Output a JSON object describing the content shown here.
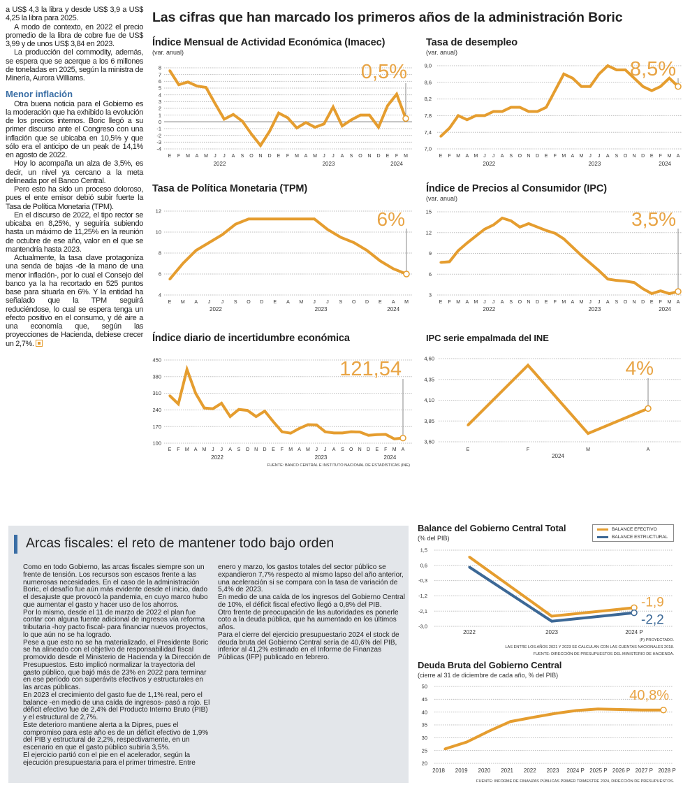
{
  "headline": "Las cifras que han marcado los primeros años de la administración Boric",
  "left_column": {
    "paragraphs_top": [
      "a US$ 4,3 la libra y desde US$ 3,9 a US$ 4,25 la libra para 2025.",
      "A modo de contexto, en 2022 el precio promedio de la libra de cobre fue de US$ 3,99 y de unos US$ 3,84 en 2023.",
      "La producción del commodity, además, se espera que se acerque a los 6 millones de toneladas en 2025, según la ministra de Minería, Aurora Williams."
    ],
    "subheading": "Menor inflación",
    "paragraphs_bottom": [
      "Otra buena noticia para el Gobierno es la moderación que ha exhibido la evolución de los precios internos. Boric llegó a su primer discurso ante el Congreso con una inflación que se ubicaba en 10,5% y que sólo era el anticipo de un peak de 14,1% en agosto de 2022.",
      "Hoy lo acompaña un alza de 3,5%, es decir, un nivel ya cercano a la meta delineada por el Banco Central.",
      "Pero esto ha sido un proceso doloroso, pues el ente emisor debió subir fuerte la Tasa de Política Monetaria (TPM).",
      "En el discurso de 2022, el tipo rector se ubicaba en 8,25%, y seguiría subiendo hasta un máximo de 11,25% en la reunión de octubre de ese año, valor en el que se mantendría hasta 2023.",
      "Actualmente, la tasa clave protagoniza una senda de bajas -de la mano de una menor inflación-, por lo cual el Consejo del banco ya la ha recortado en 525 puntos base para situarla en 6%. Y la entidad ha señalado que la TPM seguirá reduciéndose, lo cual se espera tenga un efecto positivo en el consumo, y dé aire a una economía que, según las proyecciones de Hacienda, debiese crecer un 2,7%."
    ],
    "end_icon": "end-of-article-square-icon"
  },
  "arcas": {
    "title": "Arcas fiscales: el reto de mantener todo bajo orden",
    "paragraphs": [
      "Como en todo Gobierno, las arcas fiscales siempre son un frente de tensión. Los recursos son escasos frente a las numerosas necesidades. En el caso de la administración Boric, el desafío fue aún más evidente desde el inicio, dado el desajuste que provocó la pandemia, en cuyo marco hubo que aumentar el gasto y hacer uso de los ahorros.",
      "Por lo mismo, desde el 11 de marzo de 2022 el plan fue contar con alguna fuente adicional de ingresos vía reforma tributaria -hoy pacto fiscal- para financiar nuevos proyectos, lo que aún no se ha logrado.",
      "Pese a que esto no se ha materializado, el Presidente Boric se ha alineado con el objetivo de responsabilidad fiscal promovido desde el Ministerio de Hacienda y la Dirección de Presupuestos. Esto implicó normalizar la trayectoria del gasto público, que bajó más de 23% en 2022 para terminar en ese período con superávits efectivos y estructurales en las arcas públicas.",
      "En 2023 el crecimiento del gasto fue de 1,1% real, pero el balance -en medio de una caída de ingresos- pasó a rojo. El déficit efectivo fue de 2,4% del Producto Interno Bruto (PIB) y el estructural de 2,7%.",
      "Este deterioro mantiene alerta a la Dipres, pues el compromiso para este año es de un déficit efectivo de 1,9% del PIB y estructural de 2,2%, respectivamente, en un escenario en que el gasto público subiría 3,5%.",
      "El ejercicio partió con el pie en el acelerador, según la ejecución presupuestaria para el primer trimestre. Entre enero y marzo, los gastos totales del sector público se expandieron 7,7% respecto al mismo lapso del año anterior, una aceleración si se compara con la tasa de variación de 5,4% de 2023.",
      "En medio de una caída de los ingresos del Gobierno Central de 10%, el déficit fiscal efectivo llegó a 0,8% del PIB.",
      "Otro frente de preocupación de las autoridades es ponerle coto a la deuda pública, que ha aumentado en los últimos años.",
      "Para el cierre del ejercicio presupuestario 2024 el stock de deuda bruta del Gobierno Central sería de 40,6% del PIB, inferior al 41,2% estimado en el Informe de Finanzas Públicas (IFP) publicado en febrero."
    ]
  },
  "colors": {
    "accent": "#e59d2f",
    "highlight_text": "#e8a445",
    "structural": "#3c6896",
    "subheading": "#3a6ea5",
    "box_bg": "#e3e6ea"
  },
  "chart_data": [
    {
      "type": "line",
      "title": "Índice Mensual de Actividad Económica (Imacec)",
      "subtitle": "(var. anual)",
      "x_labels": [
        "E",
        "F",
        "M",
        "A",
        "M",
        "J",
        "J",
        "A",
        "S",
        "O",
        "N",
        "D",
        "E",
        "F",
        "M",
        "A",
        "M",
        "J",
        "J",
        "A",
        "S",
        "O",
        "N",
        "D",
        "E",
        "F",
        "M"
      ],
      "year_groups": [
        {
          "label": "2022",
          "count": 12
        },
        {
          "label": "2023",
          "count": 12
        },
        {
          "label": "2024",
          "count": 3
        }
      ],
      "yticks": [
        8,
        7,
        6,
        5,
        4,
        3,
        2,
        1,
        0,
        -1,
        -2,
        -3,
        -4
      ],
      "ytick_labels": [
        "8",
        "7",
        "6",
        "5",
        "4",
        "3",
        "2",
        "1",
        "0",
        "-1",
        "-2",
        "-3",
        "-4"
      ],
      "ylim": [
        -4,
        8
      ],
      "zero_line": true,
      "grid": true,
      "series": [
        {
          "color": "#e59d2f",
          "values": [
            7.6,
            5.5,
            5.9,
            5.3,
            5.1,
            2.7,
            0.4,
            1.1,
            0.1,
            -1.8,
            -3.5,
            -1.4,
            1.3,
            0.6,
            -0.9,
            -0.1,
            -0.8,
            -0.3,
            2.2,
            -0.6,
            0.3,
            1.0,
            1.0,
            -0.8,
            2.4,
            4.1,
            0.5
          ]
        }
      ],
      "highlight_label": "0,5%"
    },
    {
      "type": "line",
      "title": "Tasa de desempleo",
      "subtitle": "(var. anual)",
      "x_labels": [
        "E",
        "F",
        "M",
        "A",
        "M",
        "J",
        "J",
        "A",
        "S",
        "O",
        "N",
        "D",
        "E",
        "F",
        "M",
        "A",
        "M",
        "J",
        "J",
        "A",
        "S",
        "O",
        "N",
        "D",
        "E",
        "F",
        "M",
        "A"
      ],
      "year_groups": [
        {
          "label": "2022",
          "count": 12
        },
        {
          "label": "2023",
          "count": 12
        },
        {
          "label": "2024",
          "count": 4
        }
      ],
      "yticks": [
        9.0,
        8.6,
        8.2,
        7.8,
        7.4,
        7.0
      ],
      "ytick_labels": [
        "9,0",
        "8,6",
        "8,2",
        "7,8",
        "7,4",
        "7,0"
      ],
      "ylim": [
        7.0,
        9.0
      ],
      "grid": true,
      "series": [
        {
          "color": "#e59d2f",
          "values": [
            7.3,
            7.5,
            7.8,
            7.7,
            7.8,
            7.8,
            7.9,
            7.9,
            8.0,
            8.0,
            7.9,
            7.9,
            8.0,
            8.4,
            8.8,
            8.7,
            8.5,
            8.5,
            8.8,
            9.0,
            8.9,
            8.9,
            8.7,
            8.5,
            8.4,
            8.5,
            8.7,
            8.5
          ]
        }
      ],
      "highlight_label": "8,5%"
    },
    {
      "type": "line",
      "title": "Tasa de Política Monetaria (TPM)",
      "subtitle": "",
      "x_labels": [
        "E",
        "M",
        "A",
        "J",
        "J",
        "S",
        "O",
        "D",
        "E",
        "A",
        "M",
        "J",
        "J",
        "S",
        "O",
        "D",
        "E",
        "A",
        "M"
      ],
      "year_groups": [
        {
          "label": "2022",
          "count": 8
        },
        {
          "label": "2023",
          "count": 8
        },
        {
          "label": "2024",
          "count": 3
        }
      ],
      "yticks": [
        12,
        10,
        8,
        6,
        4
      ],
      "ytick_labels": [
        "12",
        "10",
        "8",
        "6",
        "4"
      ],
      "ylim": [
        4,
        12
      ],
      "grid": true,
      "series": [
        {
          "color": "#e59d2f",
          "values": [
            5.5,
            7.0,
            8.25,
            9.0,
            9.75,
            10.75,
            11.25,
            11.25,
            11.25,
            11.25,
            11.25,
            11.25,
            10.25,
            9.5,
            9.0,
            8.25,
            7.25,
            6.5,
            6.0
          ]
        }
      ],
      "highlight_label": "6%"
    },
    {
      "type": "line",
      "title": "Índice de Precios al Consumidor (IPC)",
      "subtitle": "(var. anual)",
      "x_labels": [
        "E",
        "F",
        "M",
        "A",
        "M",
        "J",
        "J",
        "A",
        "S",
        "O",
        "N",
        "D",
        "E",
        "F",
        "M",
        "A",
        "M",
        "J",
        "J",
        "A",
        "S",
        "O",
        "N",
        "D",
        "E",
        "F",
        "M",
        "A"
      ],
      "year_groups": [
        {
          "label": "2022",
          "count": 12
        },
        {
          "label": "2023",
          "count": 12
        },
        {
          "label": "2024",
          "count": 4
        }
      ],
      "yticks": [
        15,
        12,
        9,
        6,
        3
      ],
      "ytick_labels": [
        "15",
        "12",
        "9",
        "6",
        "3"
      ],
      "ylim": [
        3,
        15
      ],
      "grid": true,
      "series": [
        {
          "color": "#e59d2f",
          "values": [
            7.7,
            7.8,
            9.4,
            10.5,
            11.5,
            12.5,
            13.1,
            14.1,
            13.7,
            12.8,
            13.3,
            12.8,
            12.3,
            11.9,
            11.1,
            9.9,
            8.7,
            7.6,
            6.5,
            5.3,
            5.1,
            5.0,
            4.8,
            3.9,
            3.2,
            3.6,
            3.2,
            3.5
          ]
        }
      ],
      "highlight_label": "3,5%"
    },
    {
      "type": "line",
      "title": "Índice diario de incertidumbre económica",
      "subtitle": "",
      "x_labels": [
        "E",
        "F",
        "M",
        "A",
        "M",
        "J",
        "J",
        "A",
        "S",
        "O",
        "N",
        "D",
        "E",
        "F",
        "M",
        "A",
        "M",
        "J",
        "J",
        "A",
        "S",
        "O",
        "N",
        "D",
        "E",
        "F",
        "M",
        "A"
      ],
      "year_groups": [
        {
          "label": "2022",
          "count": 12
        },
        {
          "label": "2023",
          "count": 12
        },
        {
          "label": "2024",
          "count": 4
        }
      ],
      "yticks": [
        450,
        380,
        310,
        240,
        170,
        100
      ],
      "ytick_labels": [
        "450",
        "380",
        "310",
        "240",
        "170",
        "100"
      ],
      "ylim": [
        100,
        450
      ],
      "grid": true,
      "series": [
        {
          "color": "#e59d2f",
          "values": [
            300,
            265,
            410,
            310,
            248,
            245,
            268,
            212,
            242,
            238,
            212,
            235,
            190,
            148,
            142,
            162,
            178,
            177,
            148,
            143,
            143,
            148,
            147,
            133,
            136,
            137,
            118,
            121.54
          ]
        }
      ],
      "highlight_label": "121,54",
      "source": "FUENTE: BANCO CENTRAL E INSTITUTO NACIONAL DE ESTADÍSTICAS (INE)"
    },
    {
      "type": "line",
      "title": "IPC serie empalmada del INE",
      "subtitle": "",
      "x_labels": [
        "E",
        "F",
        "M",
        "A"
      ],
      "year_groups": [
        {
          "label": "2024",
          "count": 4
        }
      ],
      "yticks": [
        4.6,
        4.35,
        4.1,
        3.85,
        3.6
      ],
      "ytick_labels": [
        "4,60",
        "4,35",
        "4,10",
        "3,85",
        "3,60"
      ],
      "ylim": [
        3.6,
        4.6
      ],
      "grid": true,
      "series": [
        {
          "color": "#e59d2f",
          "values": [
            3.8,
            4.52,
            3.7,
            4.0
          ]
        }
      ],
      "highlight_label": "4%"
    },
    {
      "type": "line",
      "title": "Balance del Gobierno Central Total",
      "subtitle": "(% del PIB)",
      "x_labels": [
        "2022",
        "2023",
        "2024 P"
      ],
      "yticks": [
        1.5,
        0.6,
        -0.3,
        -1.2,
        -2.1,
        -3.0
      ],
      "ytick_labels": [
        "1,5",
        "0,6",
        "-0,3",
        "-1,2",
        "-2,1",
        "-3,0"
      ],
      "ylim": [
        -3.0,
        1.5
      ],
      "grid": true,
      "legend": "top-right",
      "series": [
        {
          "name": "BALANCE EFECTIVO",
          "color": "#e59d2f",
          "values": [
            1.1,
            -2.4,
            -1.9
          ],
          "end_label": "-1,9"
        },
        {
          "name": "BALANCE ESTRUCTURAL",
          "color": "#3c6896",
          "values": [
            0.5,
            -2.7,
            -2.2
          ],
          "end_label": "-2,2"
        }
      ],
      "notes": [
        "(P) PROYECTADO.",
        "LAS ENTRE LOS AÑOS 2021 Y 2023 SE CALCULAN  CON LAS CUENTAS NACIONALES 2018.",
        "FUENTE: DIRECCIÓN DE PRESUPUESTOS DEL MINISTERIO DE HACIENDA."
      ]
    },
    {
      "type": "line",
      "title": "Deuda Bruta del Gobierno Central",
      "subtitle": "(cierre al 31 de diciembre de cada año, % del PIB)",
      "x_labels": [
        "2018",
        "2019",
        "2020",
        "2021",
        "2022",
        "2023",
        "2024 P",
        "2025 P",
        "2026 P",
        "2027 P",
        "2028 P"
      ],
      "yticks": [
        50,
        45,
        40,
        35,
        30,
        25,
        20
      ],
      "ytick_labels": [
        "50",
        "45",
        "40",
        "35",
        "30",
        "25",
        "20"
      ],
      "ylim": [
        20,
        50
      ],
      "grid": true,
      "series": [
        {
          "color": "#e59d2f",
          "values": [
            25.6,
            28.3,
            32.5,
            36.3,
            37.9,
            39.4,
            40.6,
            41.2,
            41.0,
            40.8,
            40.8
          ]
        }
      ],
      "highlight_label": "40,8%",
      "source": "FUENTE: INFORME DE FINANZAS PÚBLICAS PRIMER TRIMESTRE 2024, DIRECCIÓN DE PRESUPUESTOS."
    }
  ]
}
